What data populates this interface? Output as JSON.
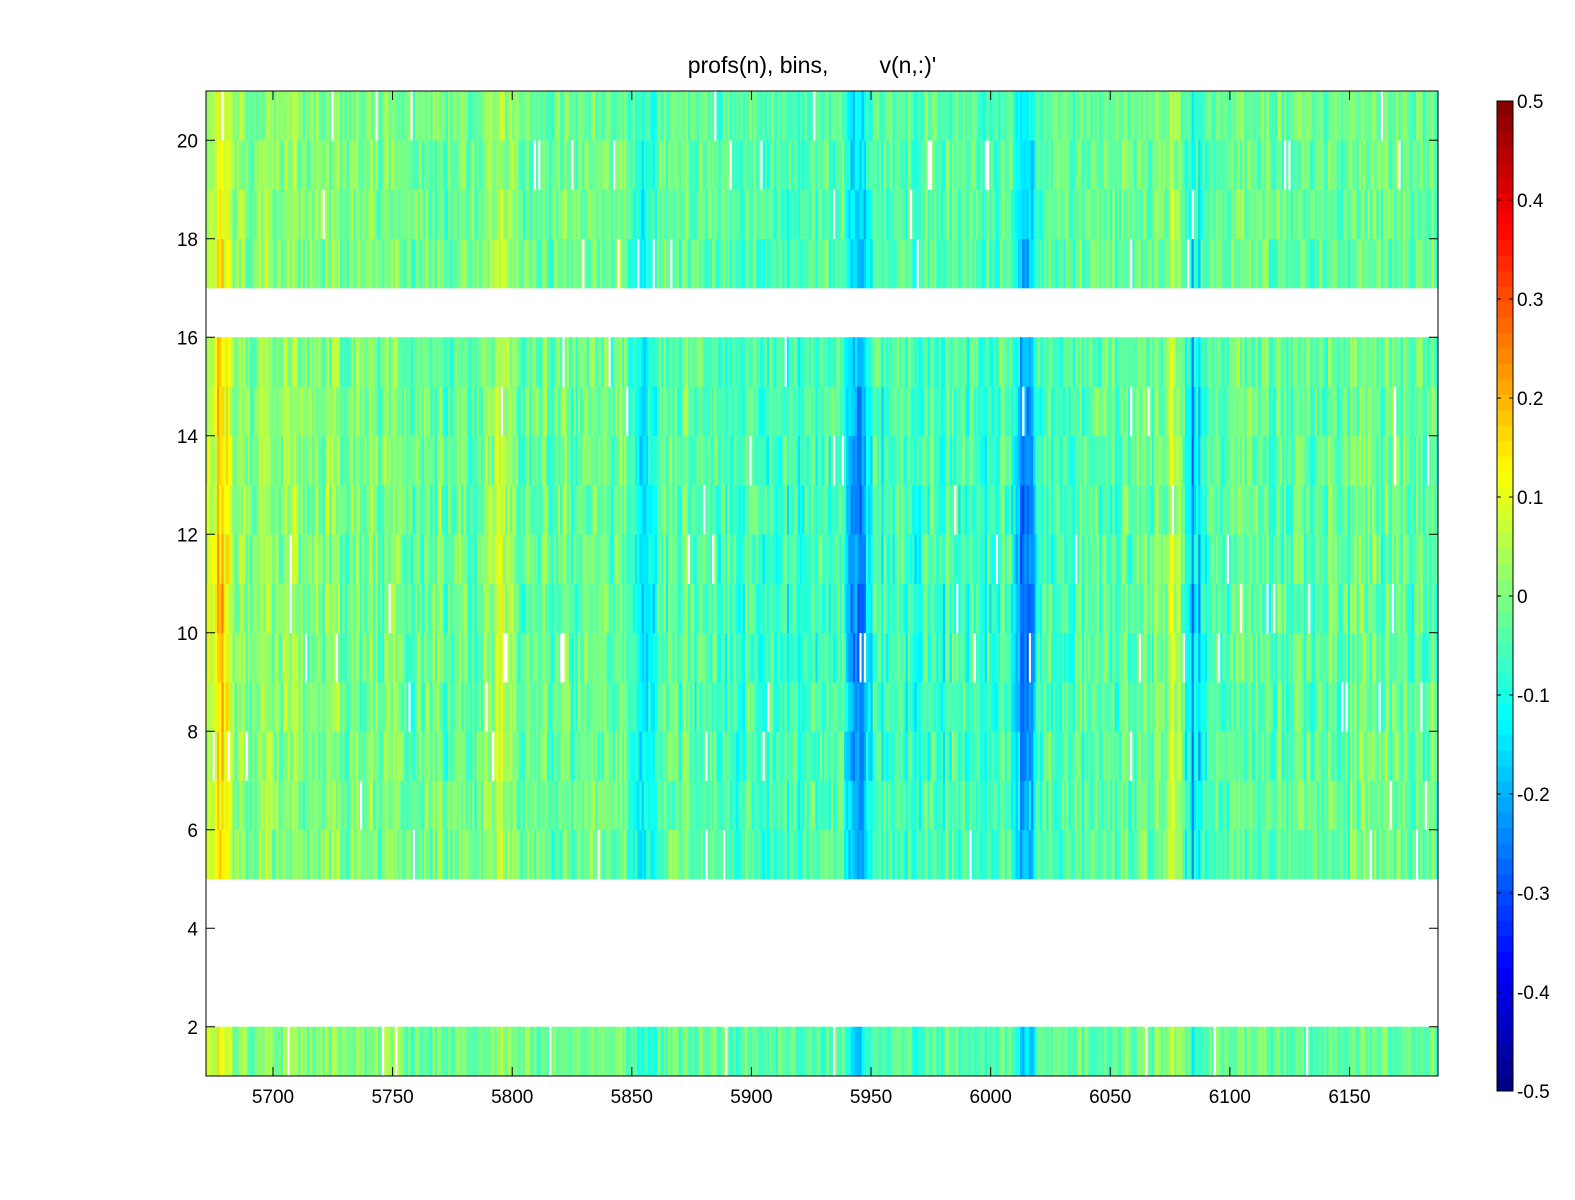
{
  "chart_data": {
    "type": "heatmap",
    "title": "profs(n), bins,        v(n,:)'",
    "xlabel": "",
    "ylabel": "",
    "xlim": [
      5672,
      6187
    ],
    "ylim": [
      1,
      21
    ],
    "x_ticks": [
      5700,
      5750,
      5800,
      5850,
      5900,
      5950,
      6000,
      6050,
      6100,
      6150
    ],
    "y_ticks": [
      2,
      4,
      6,
      8,
      10,
      12,
      14,
      16,
      18,
      20
    ],
    "colormap": "jet",
    "clim": [
      -0.5,
      0.5
    ],
    "colorbar_ticks": [
      0.5,
      0.4,
      0.3,
      0.2,
      0.1,
      0,
      -0.1,
      -0.2,
      -0.3,
      -0.4,
      -0.5
    ],
    "bins": [
      2,
      6,
      7,
      8,
      9,
      10,
      11,
      12,
      13,
      14,
      15,
      16,
      18,
      19,
      20,
      21
    ],
    "empty_bins": [
      1,
      3,
      4,
      5,
      17
    ],
    "grid": false,
    "colorbar_position": "right",
    "features": [
      {
        "x": 5678,
        "description": "warm band",
        "value": 0.22
      },
      {
        "x": 5795,
        "description": "warm band",
        "value": 0.15
      },
      {
        "x": 5855,
        "description": "cool band",
        "value": -0.2
      },
      {
        "x": 5945,
        "description": "cool band",
        "value": -0.27
      },
      {
        "x": 6015,
        "description": "cool band",
        "value": -0.3
      },
      {
        "x": 6077,
        "description": "warm band",
        "value": 0.12
      },
      {
        "x": 6085,
        "description": "cool band",
        "value": -0.22
      }
    ]
  }
}
